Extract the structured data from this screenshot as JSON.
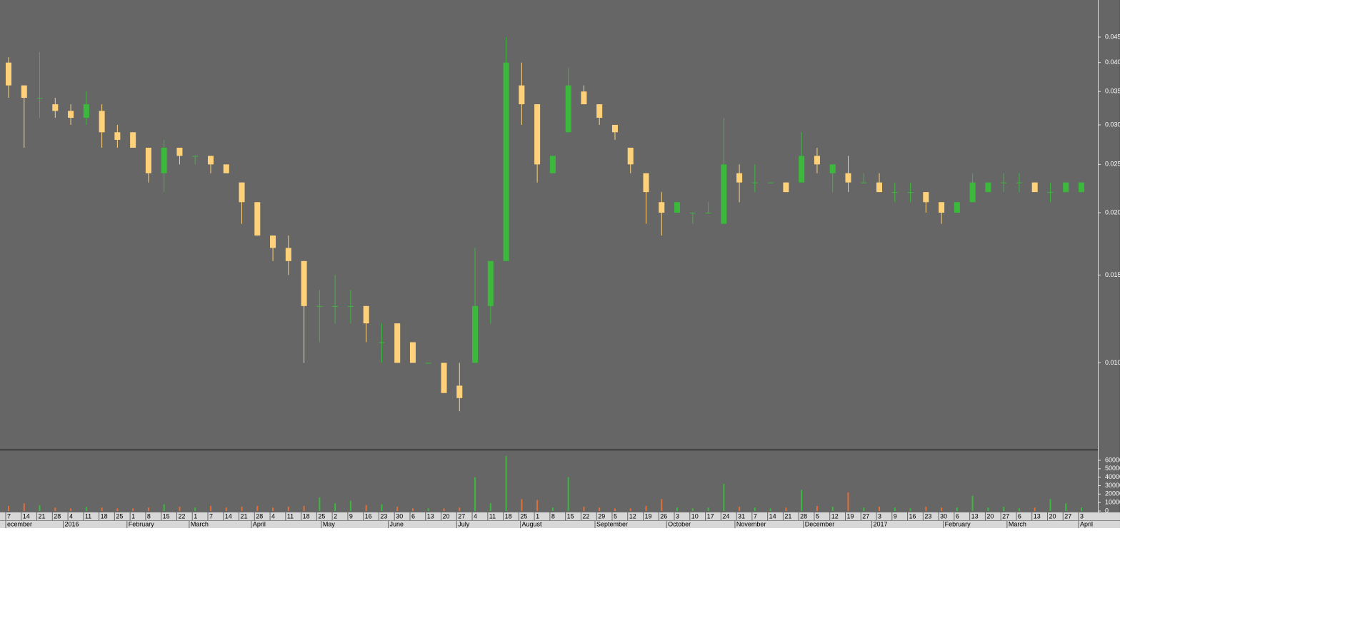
{
  "chart_data": [
    {
      "type": "candlestick",
      "log": true,
      "up_color": "#3cb83c",
      "down_color": "#ffd27a",
      "ylim": [
        0.0067,
        0.0534
      ],
      "yticks": [
        {
          "value": 0.01,
          "label": "0.010"
        },
        {
          "value": 0.015,
          "label": "0.015"
        },
        {
          "value": 0.02,
          "label": "0.020"
        },
        {
          "value": 0.025,
          "label": "0.025"
        },
        {
          "value": 0.03,
          "label": "0.030"
        },
        {
          "value": 0.035,
          "label": "0.035"
        },
        {
          "value": 0.04,
          "label": "0.040"
        },
        {
          "value": 0.045,
          "label": "0.045"
        }
      ],
      "open": [
        0.04,
        0.036,
        0.034,
        0.033,
        0.032,
        0.031,
        0.032,
        0.029,
        0.029,
        0.027,
        0.024,
        0.027,
        0.026,
        0.026,
        0.025,
        0.023,
        0.021,
        0.018,
        0.017,
        0.016,
        0.013,
        0.013,
        0.013,
        0.013,
        0.011,
        0.012,
        0.011,
        0.01,
        0.01,
        0.009,
        0.01,
        0.013,
        0.016,
        0.036,
        0.033,
        0.024,
        0.029,
        0.035,
        0.033,
        0.03,
        0.027,
        0.024,
        0.021,
        0.02,
        0.02,
        0.02,
        0.019,
        0.024,
        0.023,
        0.023,
        0.023,
        0.023,
        0.026,
        0.024,
        0.024,
        0.023,
        0.023,
        0.022,
        0.022,
        0.022,
        0.021,
        0.02,
        0.021,
        0.022,
        0.023,
        0.023,
        0.023,
        0.022,
        0.022,
        0.022
      ],
      "high": [
        0.041,
        0.036,
        0.042,
        0.034,
        0.033,
        0.035,
        0.033,
        0.03,
        0.029,
        0.027,
        0.028,
        0.027,
        0.026,
        0.026,
        0.025,
        0.023,
        0.021,
        0.018,
        0.018,
        0.016,
        0.014,
        0.015,
        0.014,
        0.013,
        0.012,
        0.012,
        0.011,
        0.01,
        0.01,
        0.01,
        0.017,
        0.016,
        0.045,
        0.04,
        0.033,
        0.026,
        0.039,
        0.036,
        0.033,
        0.03,
        0.027,
        0.024,
        0.022,
        0.021,
        0.02,
        0.021,
        0.031,
        0.025,
        0.025,
        0.023,
        0.023,
        0.029,
        0.027,
        0.025,
        0.026,
        0.024,
        0.024,
        0.023,
        0.023,
        0.022,
        0.021,
        0.021,
        0.024,
        0.023,
        0.024,
        0.024,
        0.023,
        0.023,
        0.023,
        0.023
      ],
      "low": [
        0.034,
        0.027,
        0.031,
        0.031,
        0.03,
        0.03,
        0.027,
        0.027,
        0.027,
        0.023,
        0.022,
        0.025,
        0.025,
        0.024,
        0.024,
        0.019,
        0.018,
        0.016,
        0.015,
        0.01,
        0.011,
        0.012,
        0.012,
        0.011,
        0.01,
        0.01,
        0.01,
        0.01,
        0.0087,
        0.008,
        0.01,
        0.012,
        0.016,
        0.03,
        0.023,
        0.024,
        0.029,
        0.033,
        0.03,
        0.028,
        0.024,
        0.019,
        0.018,
        0.02,
        0.019,
        0.02,
        0.019,
        0.021,
        0.022,
        0.023,
        0.022,
        0.023,
        0.024,
        0.022,
        0.022,
        0.023,
        0.022,
        0.021,
        0.021,
        0.02,
        0.019,
        0.02,
        0.021,
        0.022,
        0.022,
        0.022,
        0.022,
        0.021,
        0.022,
        0.022
      ],
      "close": [
        0.036,
        0.034,
        0.034,
        0.032,
        0.031,
        0.033,
        0.029,
        0.028,
        0.027,
        0.024,
        0.027,
        0.026,
        0.026,
        0.025,
        0.024,
        0.021,
        0.018,
        0.017,
        0.016,
        0.013,
        0.013,
        0.013,
        0.013,
        0.012,
        0.011,
        0.01,
        0.01,
        0.01,
        0.0087,
        0.0085,
        0.013,
        0.016,
        0.04,
        0.033,
        0.025,
        0.026,
        0.036,
        0.033,
        0.031,
        0.029,
        0.025,
        0.022,
        0.02,
        0.021,
        0.02,
        0.02,
        0.025,
        0.023,
        0.023,
        0.023,
        0.022,
        0.026,
        0.025,
        0.025,
        0.023,
        0.023,
        0.022,
        0.022,
        0.022,
        0.021,
        0.02,
        0.021,
        0.023,
        0.023,
        0.023,
        0.023,
        0.022,
        0.022,
        0.023,
        0.023
      ]
    },
    {
      "type": "bar",
      "color": "#3cb83c",
      "down_color": "#e0703a",
      "ylim": [
        0,
        71000
      ],
      "yticks": [
        0,
        10000,
        20000,
        30000,
        40000,
        50000,
        60000
      ],
      "categories": [
        "7",
        "14",
        "21",
        "28",
        "4",
        "11",
        "18",
        "25",
        "1",
        "8",
        "15",
        "22",
        "1",
        "7",
        "14",
        "21",
        "28",
        "4",
        "11",
        "18",
        "25",
        "2",
        "9",
        "16",
        "23",
        "30",
        "6",
        "13",
        "20",
        "27",
        "4",
        "11",
        "18",
        "25",
        "1",
        "8",
        "15",
        "22",
        "29",
        "5",
        "12",
        "19",
        "26",
        "3",
        "10",
        "17",
        "24",
        "31",
        "7",
        "14",
        "21",
        "28",
        "5",
        "12",
        "19",
        "27",
        "3",
        "9",
        "16",
        "23",
        "30",
        "6",
        "13",
        "20",
        "27",
        "6",
        "13",
        "20",
        "27",
        "3"
      ],
      "values": [
        6000,
        9000,
        7000,
        4000,
        3000,
        5000,
        4000,
        3000,
        3000,
        4000,
        8000,
        5000,
        4000,
        6000,
        4000,
        5000,
        6000,
        4000,
        5000,
        6000,
        16000,
        9000,
        12000,
        7000,
        8000,
        5000,
        3000,
        3000,
        3000,
        4000,
        40000,
        9000,
        65000,
        14000,
        13000,
        4000,
        40000,
        5000,
        4000,
        3000,
        3000,
        6000,
        14000,
        4000,
        3000,
        4000,
        32000,
        5000,
        4000,
        3000,
        4000,
        25000,
        6000,
        5000,
        22000,
        4000,
        5000,
        4000,
        3000,
        5000,
        4000,
        4000,
        18000,
        4000,
        5000,
        3000,
        4000,
        14000,
        9000,
        4000
      ],
      "xticks": [
        {
          "value": 0,
          "label": "ecember"
        },
        {
          "value": 3.7,
          "label": "2016"
        },
        {
          "value": 7.8,
          "label": "February"
        },
        {
          "value": 11.8,
          "label": "March"
        },
        {
          "value": 15.8,
          "label": "April"
        },
        {
          "value": 20.3,
          "label": "May"
        },
        {
          "value": 24.6,
          "label": "June"
        },
        {
          "value": 29,
          "label": "July"
        },
        {
          "value": 33.1,
          "label": "August"
        },
        {
          "value": 37.9,
          "label": "September"
        },
        {
          "value": 42.5,
          "label": "October"
        },
        {
          "value": 46.9,
          "label": "November"
        },
        {
          "value": 51.3,
          "label": "December"
        },
        {
          "value": 55.7,
          "label": "2017"
        },
        {
          "value": 60.3,
          "label": "February"
        },
        {
          "value": 64.4,
          "label": "March"
        },
        {
          "value": 69,
          "label": "April"
        }
      ]
    }
  ]
}
